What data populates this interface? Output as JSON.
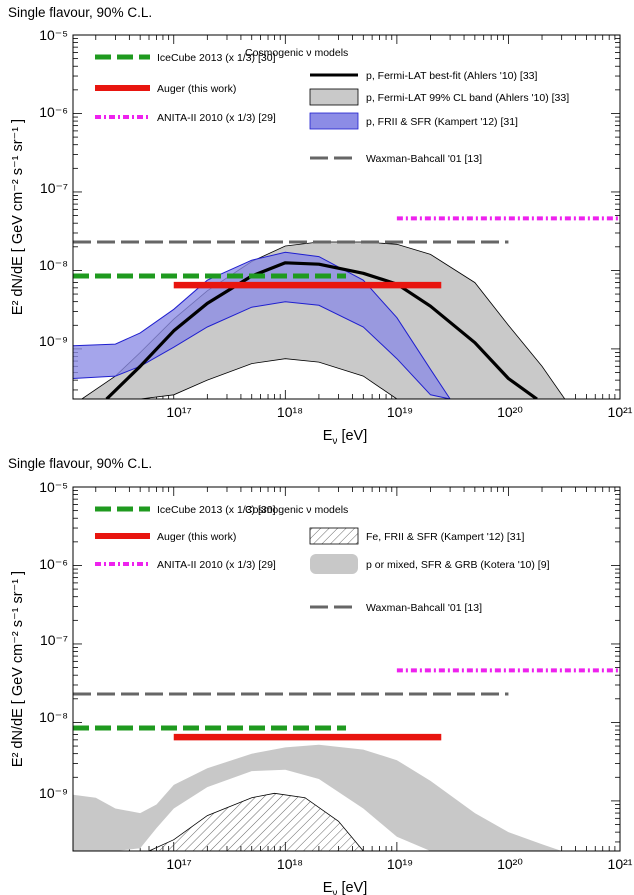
{
  "colors": {
    "icecube": "#1f9a1f",
    "auger": "#e8150f",
    "anita": "#ee22ee",
    "wb": "#666666",
    "fermi_line": "#000000",
    "fermi_band": "#c9c9c9",
    "kampert_fill": "#8c8ce6",
    "kampert_edge": "#1f1fcf",
    "kotera_band": "#c8c8c8"
  },
  "chart_data": [
    {
      "type": "line",
      "header": "Single flavour, 90% C.L.",
      "xlabel": "E",
      "xlabel_sub": "ν",
      "xlabel_unit": " [eV]",
      "ylabel": "E² dN/dE  [ GeV cm⁻² s⁻¹ sr⁻¹ ]",
      "xscale": "log",
      "yscale": "log",
      "xlim": [
        1.25e+16,
        1e+21
      ],
      "ylim": [
        2.3e-10,
        1e-05
      ],
      "x_ticks": [
        "10¹⁷",
        "10¹⁸",
        "10¹⁹",
        "10²⁰",
        "10²¹"
      ],
      "y_ticks": [
        "10⁻⁵",
        "10⁻⁶",
        "10⁻⁷",
        "10⁻⁸",
        "10⁻⁹"
      ],
      "legend_left": [
        "IceCube 2013 (x 1/3) [30]",
        "Auger (this work)",
        "ANITA-II 2010 (x 1/3) [29]"
      ],
      "models_heading": "Cosmogenic ν models",
      "legend_right": [
        "p, Fermi-LAT best-fit (Ahlers '10) [33]",
        "p, Fermi-LAT 99% CL band (Ahlers '10) [33]",
        "p, FRII & SFR (Kampert '12) [31]",
        "Waxman-Bahcall '01 [13]"
      ],
      "series": [
        {
          "name": "IceCube 2013 (x 1/3) [30]",
          "kind": "limit",
          "x": [
            1.25e+16,
            3.5e+18
          ],
          "y": [
            8.5e-09,
            8.5e-09
          ]
        },
        {
          "name": "Auger (this work)",
          "kind": "limit",
          "x": [
            1e+17,
            2.5e+19
          ],
          "y": [
            6.5e-09,
            6.5e-09
          ]
        },
        {
          "name": "ANITA-II 2010 (x 1/3) [29]",
          "kind": "limit",
          "x": [
            1e+19,
            1e+21
          ],
          "y": [
            4.6e-08,
            4.6e-08
          ]
        },
        {
          "name": "Waxman-Bahcall '01 [13]",
          "kind": "bound",
          "x": [
            1.25e+16,
            1e+20
          ],
          "y": [
            2.3e-08,
            2.3e-08
          ]
        },
        {
          "name": "p, Fermi-LAT best-fit (Ahlers '10) [33]",
          "kind": "model_line",
          "x": [
            2.5e+16,
            5e+16,
            1e+17,
            2e+17,
            5e+17,
            1e+18,
            2e+18,
            5e+18,
            1e+19,
            2e+19,
            5e+19,
            1e+20,
            1.8e+20
          ],
          "y": [
            2.3e-10,
            6e-10,
            1.7e-09,
            3.8e-09,
            8.5e-09,
            1.25e-08,
            1.2e-08,
            9.2e-09,
            6.7e-09,
            3.5e-09,
            1.2e-09,
            4.2e-10,
            2.3e-10
          ]
        },
        {
          "name": "p, Fermi-LAT 99% CL band (Ahlers '10) [33]",
          "kind": "model_band",
          "x": [
            1.5e+16,
            3e+16,
            5e+16,
            1e+17,
            2e+17,
            5e+17,
            1e+18,
            2e+18,
            5e+18,
            1e+19,
            2e+19,
            5e+19,
            1e+20,
            2e+20,
            3.2e+20
          ],
          "y_low": [
            2.3e-10,
            2.3e-10,
            2.3e-10,
            2.6e-10,
            4e-10,
            6.5e-10,
            7.5e-10,
            6.8e-10,
            4.5e-10,
            2.3e-10,
            2.3e-10,
            2.3e-10,
            2.3e-10,
            2.3e-10,
            2.3e-10
          ],
          "y_high": [
            2.3e-10,
            4.5e-10,
            9e-10,
            2.4e-09,
            5.5e-09,
            1.3e-08,
            2.05e-08,
            2.3e-08,
            2.3e-08,
            2.15e-08,
            1.6e-08,
            7e-09,
            2e-09,
            6e-10,
            2.3e-10
          ]
        },
        {
          "name": "p, FRII & SFR (Kampert '12) [31]",
          "kind": "model_band",
          "x": [
            1.25e+16,
            3e+16,
            5e+16,
            1e+17,
            2e+17,
            5e+17,
            1e+18,
            2e+18,
            5e+18,
            1e+19,
            2e+19,
            3e+19
          ],
          "y_low": [
            4.2e-10,
            4.5e-10,
            6e-10,
            1.05e-09,
            1.9e-09,
            3.4e-09,
            4e-09,
            3.6e-09,
            1.9e-09,
            7.5e-10,
            2.6e-10,
            2.3e-10
          ],
          "y_high": [
            1.1e-09,
            1.15e-09,
            1.6e-09,
            3.2e-09,
            7.5e-09,
            1.35e-08,
            1.7e-08,
            1.5e-08,
            7.5e-09,
            2.5e-09,
            5.5e-10,
            2.3e-10
          ]
        }
      ]
    },
    {
      "type": "line",
      "header": "Single flavour, 90% C.L.",
      "xlabel": "E",
      "xlabel_sub": "ν",
      "xlabel_unit": " [eV]",
      "ylabel": "E² dN/dE  [ GeV cm⁻² s⁻¹ sr⁻¹ ]",
      "xscale": "log",
      "yscale": "log",
      "xlim": [
        1.25e+16,
        1e+21
      ],
      "ylim": [
        2.3e-10,
        1e-05
      ],
      "x_ticks": [
        "10¹⁷",
        "10¹⁸",
        "10¹⁹",
        "10²⁰",
        "10²¹"
      ],
      "y_ticks": [
        "10⁻⁵",
        "10⁻⁶",
        "10⁻⁷",
        "10⁻⁸",
        "10⁻⁹"
      ],
      "legend_left": [
        "IceCube 2013 (x 1/3) [30]",
        "Auger (this work)",
        "ANITA-II 2010 (x 1/3) [29]"
      ],
      "models_heading": "Cosmogenic ν models",
      "legend_right": [
        "Fe, FRII & SFR (Kampert '12) [31]",
        "p or mixed, SFR & GRB (Kotera '10) [9]",
        "Waxman-Bahcall '01 [13]"
      ],
      "series": [
        {
          "name": "IceCube 2013 (x 1/3) [30]",
          "kind": "limit",
          "x": [
            1.25e+16,
            3.5e+18
          ],
          "y": [
            8.5e-09,
            8.5e-09
          ]
        },
        {
          "name": "Auger (this work)",
          "kind": "limit",
          "x": [
            1e+17,
            2.5e+19
          ],
          "y": [
            6.5e-09,
            6.5e-09
          ]
        },
        {
          "name": "ANITA-II 2010 (x 1/3) [29]",
          "kind": "limit",
          "x": [
            1e+19,
            1e+21
          ],
          "y": [
            4.6e-08,
            4.6e-08
          ]
        },
        {
          "name": "Waxman-Bahcall '01 [13]",
          "kind": "bound",
          "x": [
            1.25e+16,
            1e+20
          ],
          "y": [
            2.3e-08,
            2.3e-08
          ]
        },
        {
          "name": "p or mixed, SFR & GRB (Kotera '10) [9]",
          "kind": "model_band",
          "x": [
            1.25e+16,
            2e+16,
            3e+16,
            5e+16,
            7e+16,
            1e+17,
            2e+17,
            5e+17,
            1e+18,
            2e+18,
            5e+18,
            1e+19,
            2e+19,
            5e+19,
            1e+20,
            2e+20,
            3e+20
          ],
          "y_low": [
            2.3e-10,
            2.3e-10,
            2.3e-10,
            2.5e-10,
            4.5e-10,
            8e-10,
            1.5e-09,
            2.4e-09,
            2.5e-09,
            1.9e-09,
            8e-10,
            3.5e-10,
            2.3e-10,
            2.3e-10,
            2.3e-10,
            2.3e-10,
            2.3e-10
          ],
          "y_high": [
            1.2e-09,
            1.1e-09,
            8e-10,
            7e-10,
            9e-10,
            1.6e-09,
            2.6e-09,
            4e-09,
            4.8e-09,
            5.2e-09,
            4.5e-09,
            3.3e-09,
            1.8e-09,
            7e-10,
            4e-10,
            2.8e-10,
            2.3e-10
          ]
        },
        {
          "name": "Fe, FRII & SFR (Kampert '12) [31]",
          "kind": "model_band",
          "x": [
            6e+16,
            1e+17,
            2e+17,
            5e+17,
            8e+17,
            1.5e+18,
            3e+18,
            5e+18
          ],
          "y_low": [
            2.3e-10,
            2.3e-10,
            2.3e-10,
            2.3e-10,
            2.3e-10,
            2.3e-10,
            2.3e-10,
            2.3e-10
          ],
          "y_high": [
            2.3e-10,
            3.2e-10,
            6.5e-10,
            1.1e-09,
            1.25e-09,
            1.1e-09,
            5.5e-10,
            2.3e-10
          ]
        }
      ]
    }
  ]
}
